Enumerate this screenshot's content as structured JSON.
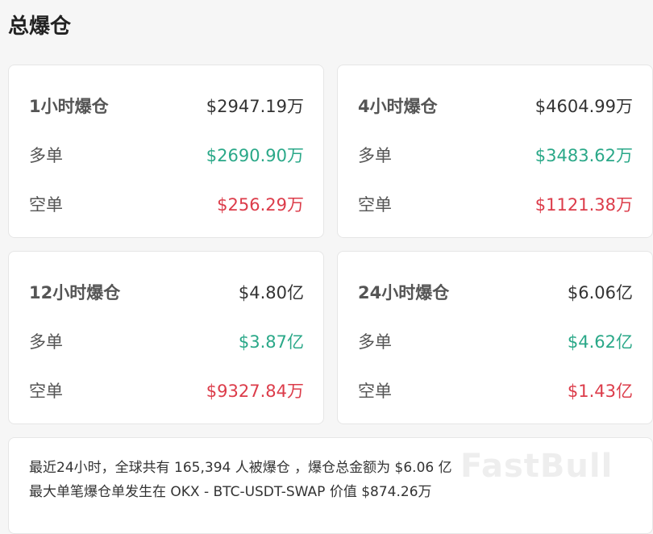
{
  "title": "总爆仓",
  "colors": {
    "long": "#2aa888",
    "short": "#dc3c4a"
  },
  "cards": [
    {
      "label": "1小时爆仓",
      "total": "$2947.19万",
      "long_label": "多单",
      "long": "$2690.90万",
      "short_label": "空单",
      "short": "$256.29万"
    },
    {
      "label": "4小时爆仓",
      "total": "$4604.99万",
      "long_label": "多单",
      "long": "$3483.62万",
      "short_label": "空单",
      "short": "$1121.38万"
    },
    {
      "label": "12小时爆仓",
      "total": "$4.80亿",
      "long_label": "多单",
      "long": "$3.87亿",
      "short_label": "空单",
      "short": "$9327.84万"
    },
    {
      "label": "24小时爆仓",
      "total": "$6.06亿",
      "long_label": "多单",
      "long": "$4.62亿",
      "short_label": "空单",
      "short": "$1.43亿"
    }
  ],
  "summary": {
    "line1": "最近24小时，全球共有 165,394 人被爆仓 ，爆仓总金额为 $6.06 亿",
    "line2": "最大单笔爆仓单发生在 OKX - BTC-USDT-SWAP 价值 $874.26万"
  },
  "watermark": "FastBull"
}
